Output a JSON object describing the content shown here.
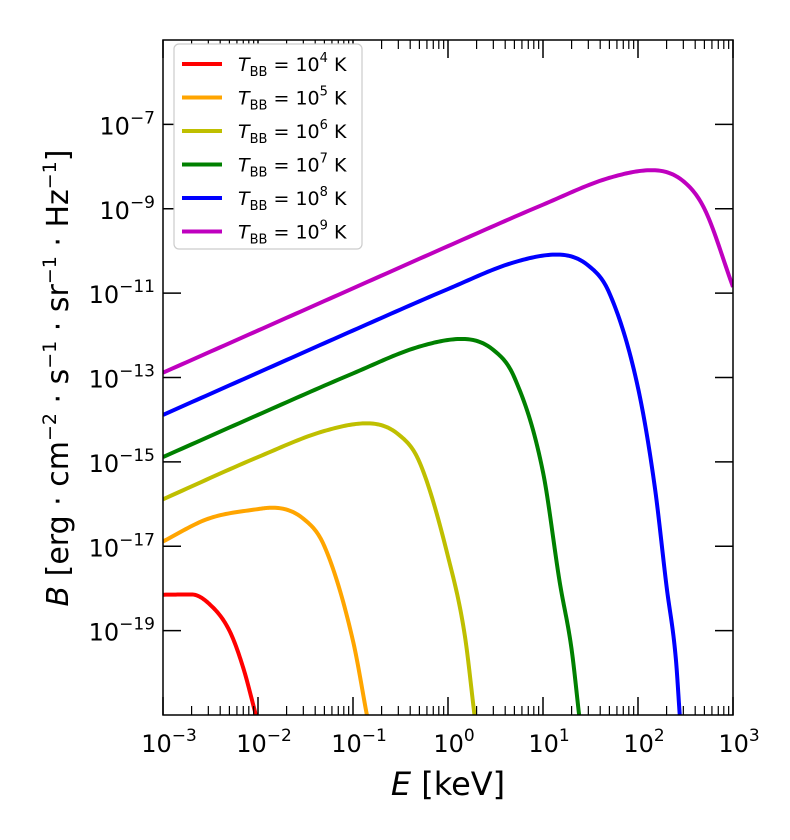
{
  "chart_data": {
    "type": "line",
    "xlabel": "E [keV]",
    "xlabel_parts": {
      "var": "E",
      "unit": " [keV]"
    },
    "ylabel": "B [erg · cm⁻² · s⁻¹ · sr⁻¹ · Hz⁻¹]",
    "ylabel_parts": {
      "var": "B",
      "unit": " [erg · cm",
      "e1": "−2",
      "u2": " · s",
      "e2": "−1",
      "u3": " · sr",
      "e3": "−1",
      "u4": " · Hz",
      "e4": "−1",
      "u5": "]"
    },
    "x_scale": "log",
    "y_scale": "log",
    "xlim": [
      0.001,
      1000
    ],
    "ylim": [
      1e-21,
      1e-05
    ],
    "grid": false,
    "legend_position": "top-left",
    "x_ticks": [
      {
        "base": "10",
        "exp": "−3"
      },
      {
        "base": "10",
        "exp": "−2"
      },
      {
        "base": "10",
        "exp": "−1"
      },
      {
        "base": "10",
        "exp": "0"
      },
      {
        "base": "10",
        "exp": "1"
      },
      {
        "base": "10",
        "exp": "2"
      },
      {
        "base": "10",
        "exp": "3"
      }
    ],
    "y_ticks": [
      {
        "base": "10",
        "exp": "−19"
      },
      {
        "base": "10",
        "exp": "−17"
      },
      {
        "base": "10",
        "exp": "−15"
      },
      {
        "base": "10",
        "exp": "−13"
      },
      {
        "base": "10",
        "exp": "−11"
      },
      {
        "base": "10",
        "exp": "−9"
      },
      {
        "base": "10",
        "exp": "−7"
      }
    ],
    "series": [
      {
        "name": "T_BB = 10^4 K",
        "label": {
          "sym": "T",
          "sub": "BB",
          "eq": " = 10",
          "exp": "4",
          "unit": " K"
        },
        "color": "#ff0000",
        "temperature_K": 10000.0,
        "points": [
          [
            0.001,
            7.1e-19
          ],
          [
            0.002,
            7.2e-19
          ],
          [
            0.003,
            4.5e-19
          ],
          [
            0.005,
            1e-19
          ],
          [
            0.007,
            1.3e-20
          ],
          [
            0.0095,
            1e-21
          ]
        ]
      },
      {
        "name": "T_BB = 10^5 K",
        "label": {
          "sym": "T",
          "sub": "BB",
          "eq": " = 10",
          "exp": "5",
          "unit": " K"
        },
        "color": "#ffa500",
        "temperature_K": 100000.0,
        "points": [
          [
            0.001,
            1.3e-17
          ],
          [
            0.003,
            4.5e-17
          ],
          [
            0.01,
            7.6e-17
          ],
          [
            0.014,
            8.2e-17
          ],
          [
            0.03,
            4.5e-17
          ],
          [
            0.05,
            1e-17
          ],
          [
            0.1,
            5.7e-20
          ],
          [
            0.14,
            1e-21
          ]
        ]
      },
      {
        "name": "T_BB = 10^6 K",
        "label": {
          "sym": "T",
          "sub": "BB",
          "eq": " = 10",
          "exp": "6",
          "unit": " K"
        },
        "color": "#bfbf00",
        "temperature_K": 1000000.0,
        "points": [
          [
            0.001,
            1.3e-16
          ],
          [
            0.01,
            1.3e-15
          ],
          [
            0.05,
            5.4e-15
          ],
          [
            0.14,
            8.2e-15
          ],
          [
            0.3,
            4.5e-15
          ],
          [
            0.5,
            1e-15
          ],
          [
            1.0,
            5.7e-18
          ],
          [
            1.5,
            7.9e-20
          ],
          [
            1.9,
            1e-21
          ]
        ]
      },
      {
        "name": "T_BB = 10^7 K",
        "label": {
          "sym": "T",
          "sub": "BB",
          "eq": " = 10",
          "exp": "7",
          "unit": " K"
        },
        "color": "#008000",
        "temperature_K": 10000000.0,
        "points": [
          [
            0.001,
            1.3e-15
          ],
          [
            0.01,
            1.3e-14
          ],
          [
            0.1,
            1.25e-13
          ],
          [
            0.5,
            5.4e-13
          ],
          [
            1.4,
            8.2e-13
          ],
          [
            3.0,
            4.5e-13
          ],
          [
            5.0,
            1e-13
          ],
          [
            10.0,
            5.7e-16
          ],
          [
            15.0,
            1.4e-18
          ],
          [
            20.0,
            3.6e-20
          ],
          [
            24.0,
            1e-21
          ]
        ]
      },
      {
        "name": "T_BB = 10^8 K",
        "label": {
          "sym": "T",
          "sub": "BB",
          "eq": " = 10",
          "exp": "8",
          "unit": " K"
        },
        "color": "#0000ff",
        "temperature_K": 100000000.0,
        "points": [
          [
            0.001,
            1.3e-14
          ],
          [
            0.01,
            1.3e-13
          ],
          [
            0.1,
            1.3e-12
          ],
          [
            1.0,
            1.25e-11
          ],
          [
            5.0,
            5.4e-11
          ],
          [
            14.0,
            8.2e-11
          ],
          [
            30.0,
            4.5e-11
          ],
          [
            50.0,
            1e-11
          ],
          [
            100.0,
            5.7e-14
          ],
          [
            150.0,
            2.6e-16
          ],
          [
            200.0,
            1.1e-18
          ],
          [
            250.0,
            2.2e-20
          ],
          [
            275.0,
            1e-21
          ]
        ]
      },
      {
        "name": "T_BB = 10^9 K",
        "label": {
          "sym": "T",
          "sub": "BB",
          "eq": " = 10",
          "exp": "9",
          "unit": " K"
        },
        "color": "#bf00bf",
        "temperature_K": 1000000000.0,
        "points": [
          [
            0.001,
            1.3e-13
          ],
          [
            0.01,
            1.3e-12
          ],
          [
            0.1,
            1.3e-11
          ],
          [
            1.0,
            1.3e-10
          ],
          [
            10.0,
            1.25e-09
          ],
          [
            50.0,
            5.4e-09
          ],
          [
            140.0,
            8.2e-09
          ],
          [
            300.0,
            4.5e-09
          ],
          [
            500.0,
            1e-09
          ],
          [
            1000.0,
            1.4e-11
          ]
        ]
      }
    ]
  }
}
